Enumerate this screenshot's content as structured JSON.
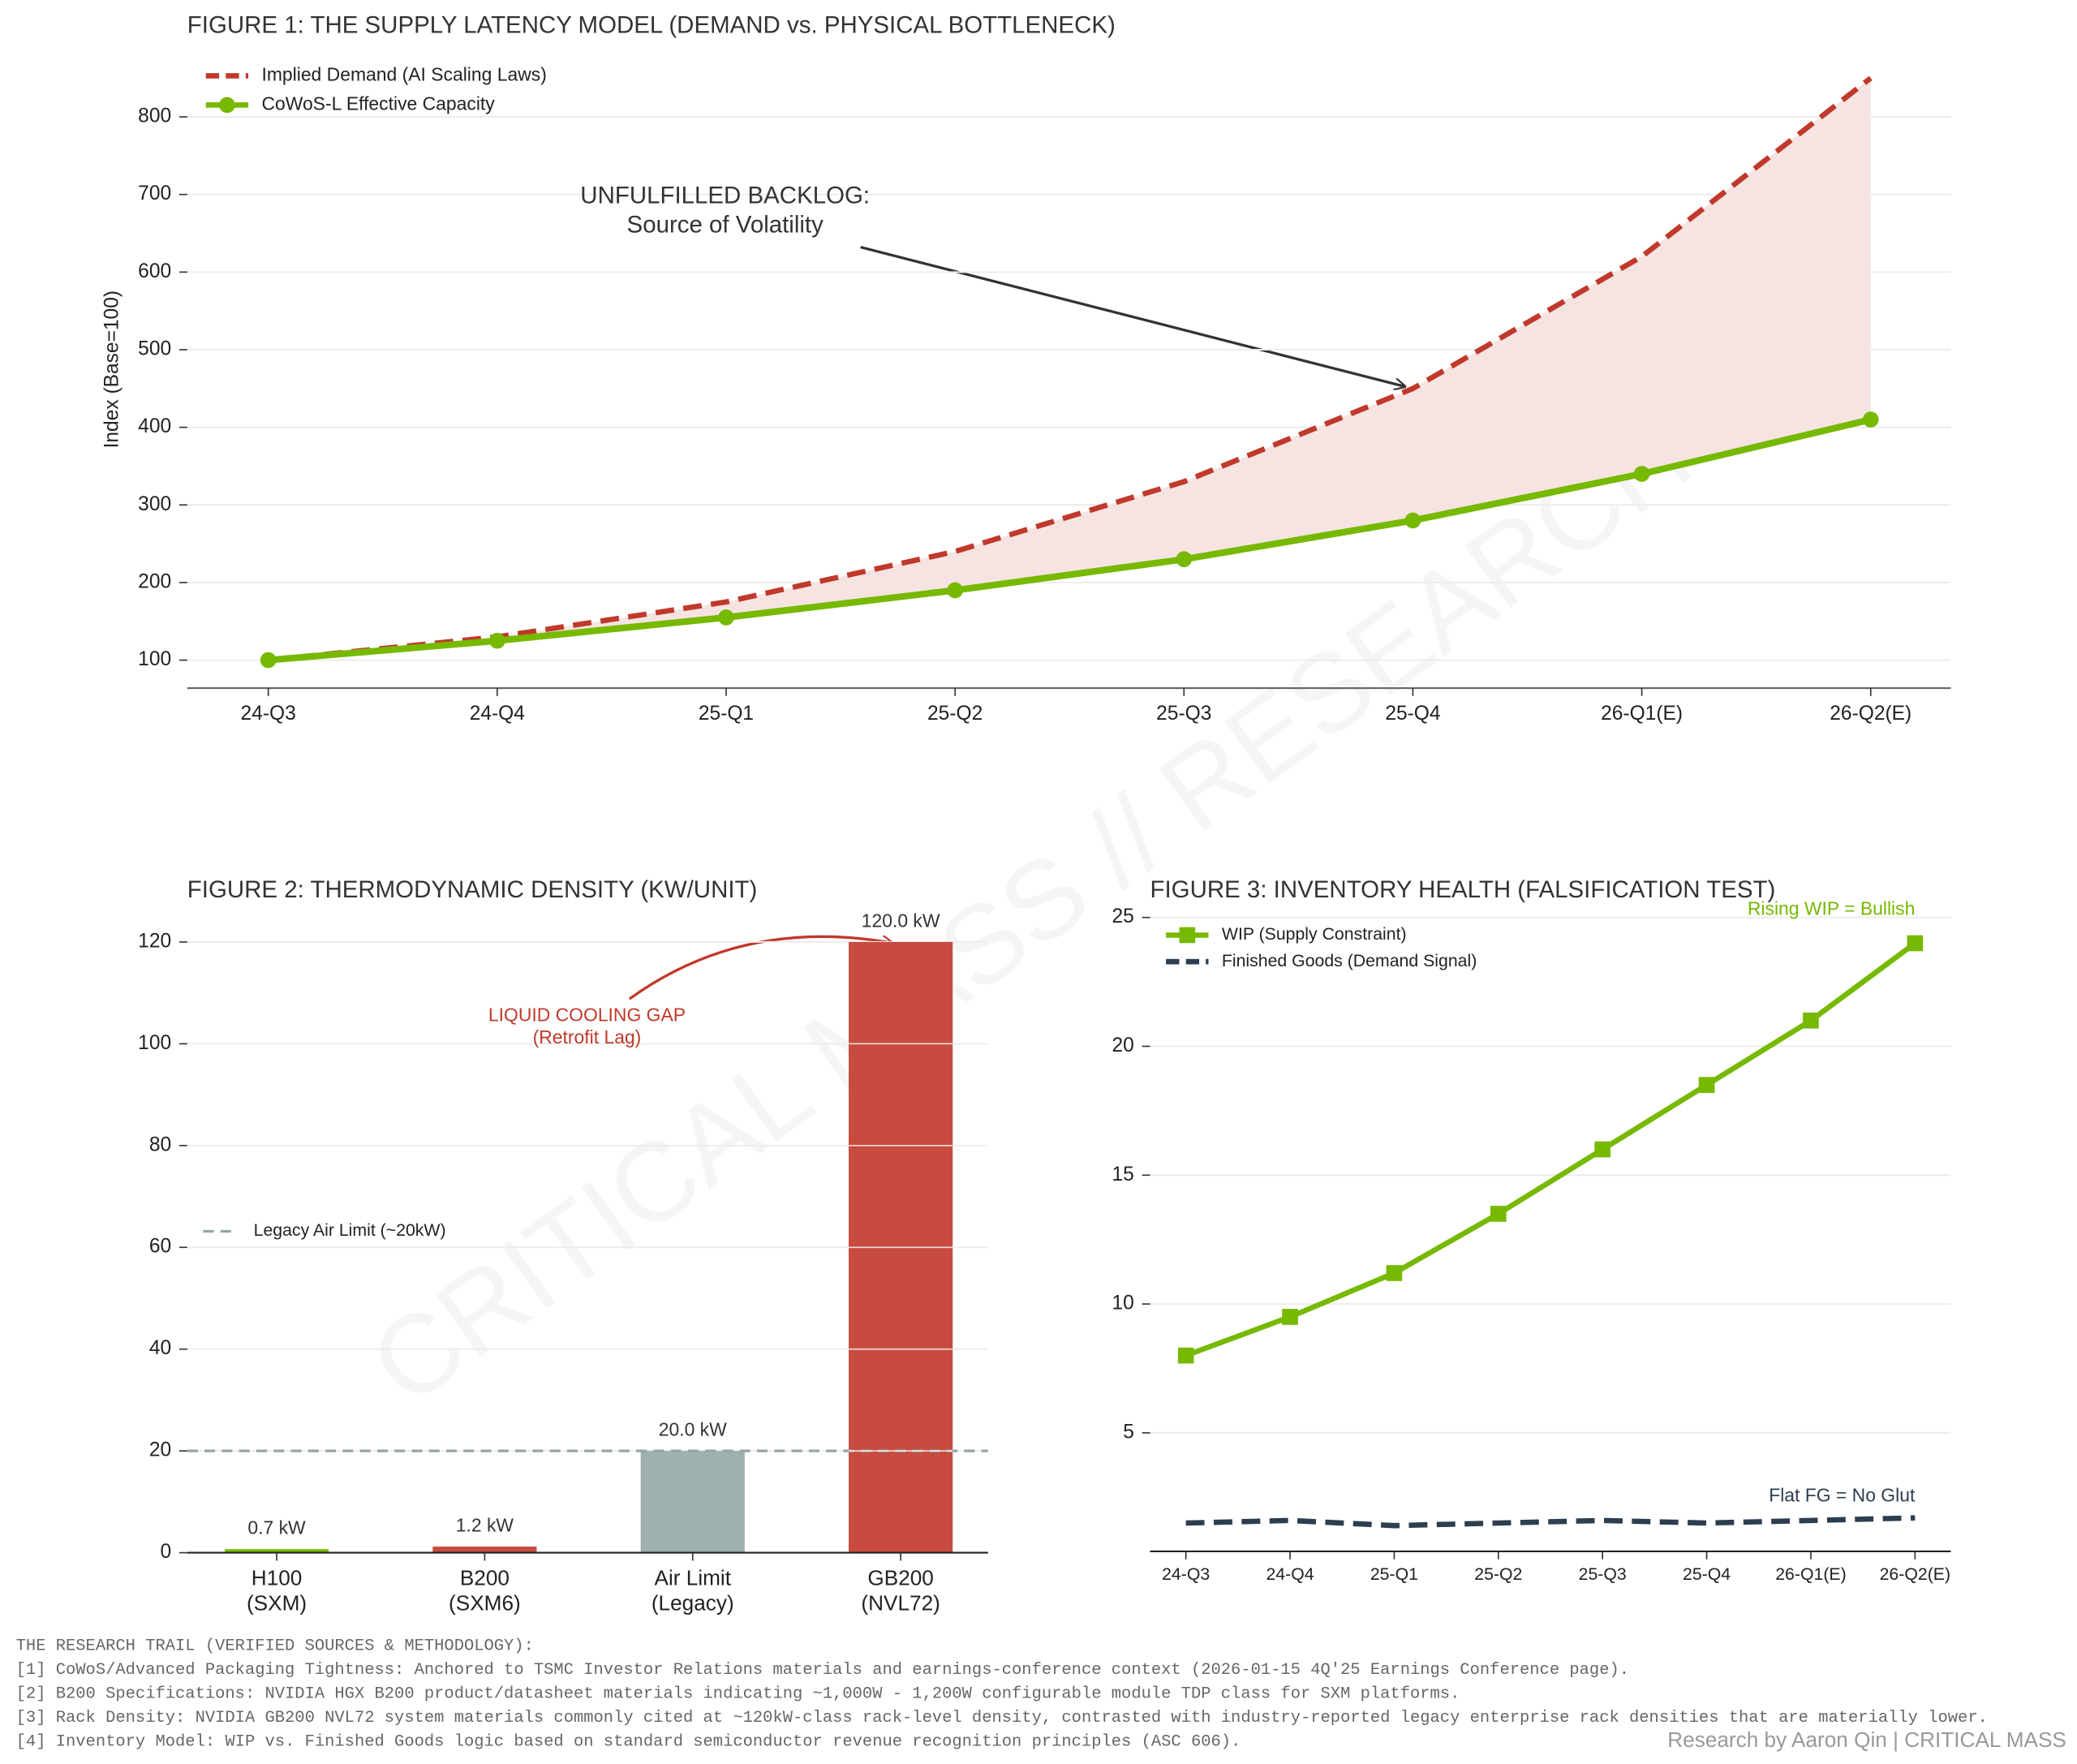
{
  "chart_data": [
    {
      "type": "line",
      "title": "FIGURE 1: THE SUPPLY LATENCY MODEL (DEMAND vs. PHYSICAL BOTTLENECK)",
      "ylabel": "Index (Base=100)",
      "categories": [
        "24-Q3",
        "24-Q4",
        "25-Q1",
        "25-Q2",
        "25-Q3",
        "25-Q4",
        "26-Q1(E)",
        "26-Q2(E)"
      ],
      "series": [
        {
          "name": "Implied Demand (AI Scaling Laws)",
          "color": "#c0392b",
          "linestyle": "dashed",
          "marker": "none",
          "values": [
            100,
            130,
            175,
            240,
            330,
            450,
            620,
            850
          ]
        },
        {
          "name": "CoWoS-L Effective Capacity",
          "color": "#76b900",
          "linestyle": "solid",
          "marker": "circle",
          "values": [
            100,
            125,
            155,
            190,
            230,
            280,
            340,
            410
          ]
        }
      ],
      "fill_between": true,
      "fill_color": "#f6e4e2",
      "annotation": "UNFULFILLED BACKLOG:\nSource of Volatility",
      "ylim": [
        64,
        870
      ],
      "yticks": [
        100,
        200,
        300,
        400,
        500,
        600,
        700,
        800
      ],
      "grid": true,
      "legend": "upper left"
    },
    {
      "type": "bar",
      "title": "FIGURE 2: THERMODYNAMIC DENSITY (KW/UNIT)",
      "categories": [
        "H100\n(SXM)",
        "B200\n(SXM6)",
        "Air Limit\n(Legacy)",
        "GB200\n(NVL72)"
      ],
      "values": [
        0.7,
        1.2,
        20,
        120
      ],
      "value_labels": [
        "0.7 kW",
        "1.2 kW",
        "20.0 kW",
        "120.0 kW"
      ],
      "colors": [
        "#76b900",
        "#c84b3f",
        "#9fb0b0",
        "#c84b3f"
      ],
      "reference_line": {
        "value": 20,
        "name": "Legacy Air Limit (~20kW)",
        "color": "#95a5a6"
      },
      "annotation": "LIQUID COOLING GAP\n(Retrofit Lag)",
      "ylim": [
        0,
        125
      ],
      "yticks": [
        0,
        20,
        40,
        60,
        80,
        100,
        120
      ],
      "grid": true,
      "legend": "center left"
    },
    {
      "type": "line",
      "title": "FIGURE 3: INVENTORY HEALTH (FALSIFICATION TEST)",
      "categories": [
        "24-Q3",
        "24-Q4",
        "25-Q1",
        "25-Q2",
        "25-Q3",
        "25-Q4",
        "26-Q1(E)",
        "26-Q2(E)"
      ],
      "series": [
        {
          "name": "WIP (Supply Constraint)",
          "color": "#76b900",
          "linestyle": "solid",
          "marker": "square",
          "values": [
            8,
            9.5,
            11.2,
            13.5,
            16,
            18.5,
            21,
            24
          ]
        },
        {
          "name": "Finished Goods (Demand Signal)",
          "color": "#2c3e50",
          "linestyle": "dashed",
          "marker": "none",
          "values": [
            1.5,
            1.6,
            1.4,
            1.5,
            1.6,
            1.5,
            1.6,
            1.7
          ]
        }
      ],
      "annotations": [
        {
          "text": "Rising WIP = Bullish",
          "color": "#76b900"
        },
        {
          "text": "Flat FG = No Glut",
          "color": "#2c3e50"
        }
      ],
      "ylim": [
        0.4,
        25.5
      ],
      "yticks": [
        5,
        10,
        15,
        20,
        25
      ],
      "grid": true,
      "legend": "upper left"
    }
  ],
  "page": {
    "watermark": "CRITICAL MASS // RESEARCH",
    "sources_title": "THE RESEARCH TRAIL (VERIFIED SOURCES & METHODOLOGY):",
    "sources": [
      "[1] CoWoS/Advanced Packaging Tightness: Anchored to TSMC Investor Relations materials and earnings-conference context (2026-01-15 4Q'25 Earnings Conference page).",
      "[2] B200 Specifications: NVIDIA HGX B200 product/datasheet materials indicating ~1,000W - 1,200W configurable module TDP class for SXM platforms.",
      "[3] Rack Density: NVIDIA GB200 NVL72 system materials commonly cited at ~120kW-class rack-level density, contrasted with industry-reported legacy enterprise rack densities that are materially lower.",
      "[4] Inventory Model: WIP vs. Finished Goods logic based on standard semiconductor revenue recognition principles (ASC 606)."
    ],
    "credit": "Research by Aaron Qin | CRITICAL MASS"
  }
}
